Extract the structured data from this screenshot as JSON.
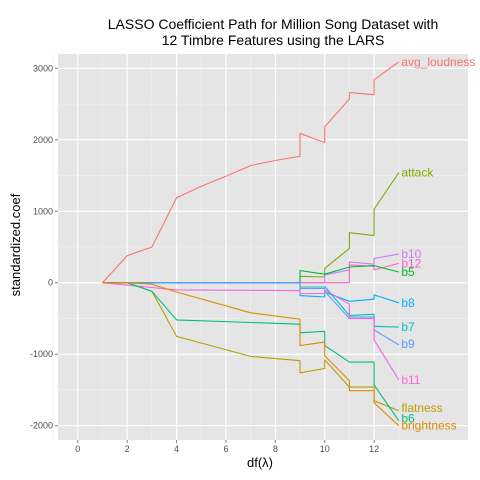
{
  "chart_data": {
    "type": "line",
    "title": [
      "LASSO Coefficient Path for Million Song Dataset with",
      "12 Timbre Features using the LARS"
    ],
    "xlabel": "df(λ)",
    "ylabel": "standardized.coef",
    "xlim": [
      -0.8,
      15.8
    ],
    "ylim": [
      -2200,
      3200
    ],
    "x_ticks": [
      0,
      2,
      4,
      6,
      8,
      10,
      12
    ],
    "y_ticks": [
      -2000,
      -1000,
      0,
      1000,
      2000,
      3000
    ],
    "grid": true,
    "background": "#e5e5e5",
    "series": [
      {
        "name": "avg_loudness",
        "color": "#f8766d",
        "points": [
          [
            1,
            0
          ],
          [
            2,
            380
          ],
          [
            3,
            500
          ],
          [
            4,
            1190
          ],
          [
            5,
            1350
          ],
          [
            6,
            1490
          ],
          [
            7,
            1640
          ],
          [
            8,
            1710
          ],
          [
            9,
            1770
          ],
          [
            9,
            2090
          ],
          [
            10,
            1960
          ],
          [
            10,
            2180
          ],
          [
            11,
            2570
          ],
          [
            11,
            2660
          ],
          [
            12,
            2630
          ],
          [
            12,
            2840
          ],
          [
            13,
            3090
          ]
        ]
      },
      {
        "name": "attack",
        "color": "#7cae00",
        "points": [
          [
            1,
            0
          ],
          [
            9,
            0
          ],
          [
            9,
            90
          ],
          [
            10,
            80
          ],
          [
            10,
            200
          ],
          [
            11,
            480
          ],
          [
            11,
            700
          ],
          [
            12,
            660
          ],
          [
            12,
            1030
          ],
          [
            13,
            1540
          ]
        ]
      },
      {
        "name": "b10",
        "color": "#c77cff",
        "points": [
          [
            1,
            0
          ],
          [
            10,
            0
          ],
          [
            10,
            110
          ],
          [
            11,
            180
          ],
          [
            11,
            290
          ],
          [
            12,
            260
          ],
          [
            12,
            340
          ],
          [
            13,
            400
          ]
        ]
      },
      {
        "name": "b12",
        "color": "#ff61c3",
        "points": [
          [
            1,
            0
          ],
          [
            10,
            0
          ],
          [
            11,
            0
          ],
          [
            11,
            250
          ],
          [
            12,
            230
          ],
          [
            12,
            180
          ],
          [
            13,
            270
          ]
        ]
      },
      {
        "name": "b5",
        "color": "#00ba38",
        "points": [
          [
            1,
            0
          ],
          [
            9,
            0
          ],
          [
            9,
            170
          ],
          [
            10,
            120
          ],
          [
            10,
            120
          ],
          [
            11,
            220
          ],
          [
            12,
            240
          ],
          [
            13,
            150
          ]
        ]
      },
      {
        "name": "b8",
        "color": "#00b0f6",
        "points": [
          [
            1,
            0
          ],
          [
            9,
            0
          ],
          [
            9,
            -180
          ],
          [
            10,
            -200
          ],
          [
            10,
            -130
          ],
          [
            11,
            -260
          ],
          [
            12,
            -230
          ],
          [
            12,
            -170
          ],
          [
            13,
            -280
          ]
        ]
      },
      {
        "name": "b7",
        "color": "#00bfc4",
        "points": [
          [
            1,
            0
          ],
          [
            9,
            0
          ],
          [
            9,
            -60
          ],
          [
            10,
            -60
          ],
          [
            10,
            -50
          ],
          [
            11,
            -460
          ],
          [
            12,
            -440
          ],
          [
            12,
            -610
          ],
          [
            13,
            -620
          ]
        ]
      },
      {
        "name": "b9",
        "color": "#619cff",
        "points": [
          [
            1,
            0
          ],
          [
            9,
            0
          ],
          [
            9,
            -80
          ],
          [
            10,
            -80
          ],
          [
            10,
            -120
          ],
          [
            11,
            -500
          ],
          [
            11,
            -480
          ],
          [
            12,
            -480
          ],
          [
            12,
            -660
          ],
          [
            13,
            -870
          ]
        ]
      },
      {
        "name": "b11",
        "color": "#f564e3",
        "points": [
          [
            1,
            0
          ],
          [
            4,
            -100
          ],
          [
            9,
            -110
          ],
          [
            9,
            -150
          ],
          [
            10,
            -150
          ],
          [
            10,
            -100
          ],
          [
            11,
            -300
          ],
          [
            11,
            -500
          ],
          [
            12,
            -500
          ],
          [
            12,
            -800
          ],
          [
            13,
            -1360
          ]
        ]
      },
      {
        "name": "flatness",
        "color": "#b79f00",
        "points": [
          [
            1,
            0
          ],
          [
            2,
            0
          ],
          [
            3,
            -120
          ],
          [
            4,
            -750
          ],
          [
            7,
            -1030
          ],
          [
            9,
            -1090
          ],
          [
            9,
            -1260
          ],
          [
            10,
            -1200
          ],
          [
            10,
            -1080
          ],
          [
            11,
            -1460
          ],
          [
            12,
            -1460
          ],
          [
            12,
            -1650
          ],
          [
            13,
            -1790
          ]
        ]
      },
      {
        "name": "b6",
        "color": "#00bf7d",
        "points": [
          [
            1,
            0
          ],
          [
            2,
            0
          ],
          [
            3,
            -120
          ],
          [
            4,
            -520
          ],
          [
            9,
            -580
          ],
          [
            9,
            -700
          ],
          [
            10,
            -680
          ],
          [
            10,
            -880
          ],
          [
            11,
            -1110
          ],
          [
            12,
            -1110
          ],
          [
            12,
            -1430
          ],
          [
            13,
            -1930
          ]
        ]
      },
      {
        "name": "brightness",
        "color": "#de8c00",
        "points": [
          [
            1,
            0
          ],
          [
            2,
            0
          ],
          [
            3,
            -20
          ],
          [
            4,
            -130
          ],
          [
            7,
            -420
          ],
          [
            9,
            -510
          ],
          [
            9,
            -880
          ],
          [
            10,
            -830
          ],
          [
            10,
            -1020
          ],
          [
            11,
            -1370
          ],
          [
            11,
            -1510
          ],
          [
            12,
            -1510
          ],
          [
            12,
            -1680
          ],
          [
            13,
            -2000
          ]
        ]
      }
    ],
    "labels": [
      {
        "text": "avg_loudness",
        "x": 13.1,
        "y": 3085,
        "color": "#f8766d"
      },
      {
        "text": "attack",
        "x": 13.1,
        "y": 1540,
        "color": "#7cae00"
      },
      {
        "text": "b10",
        "x": 13.1,
        "y": 400,
        "color": "#c77cff"
      },
      {
        "text": "b12",
        "x": 13.1,
        "y": 270,
        "color": "#ff61c3"
      },
      {
        "text": "b5",
        "x": 13.1,
        "y": 150,
        "color": "#00ba38"
      },
      {
        "text": "b8",
        "x": 13.1,
        "y": -280,
        "color": "#00b0f6"
      },
      {
        "text": "b7",
        "x": 13.1,
        "y": -620,
        "color": "#00bfc4"
      },
      {
        "text": "b9",
        "x": 13.1,
        "y": -860,
        "color": "#619cff"
      },
      {
        "text": "b11",
        "x": 13.1,
        "y": -1360,
        "color": "#f564e3"
      },
      {
        "text": "flatness",
        "x": 13.1,
        "y": -1750,
        "color": "#b79f00"
      },
      {
        "text": "b6",
        "x": 13.1,
        "y": -1900,
        "color": "#00bf7d"
      },
      {
        "text": "brightness",
        "x": 13.1,
        "y": -2000,
        "color": "#de8c00"
      }
    ]
  }
}
